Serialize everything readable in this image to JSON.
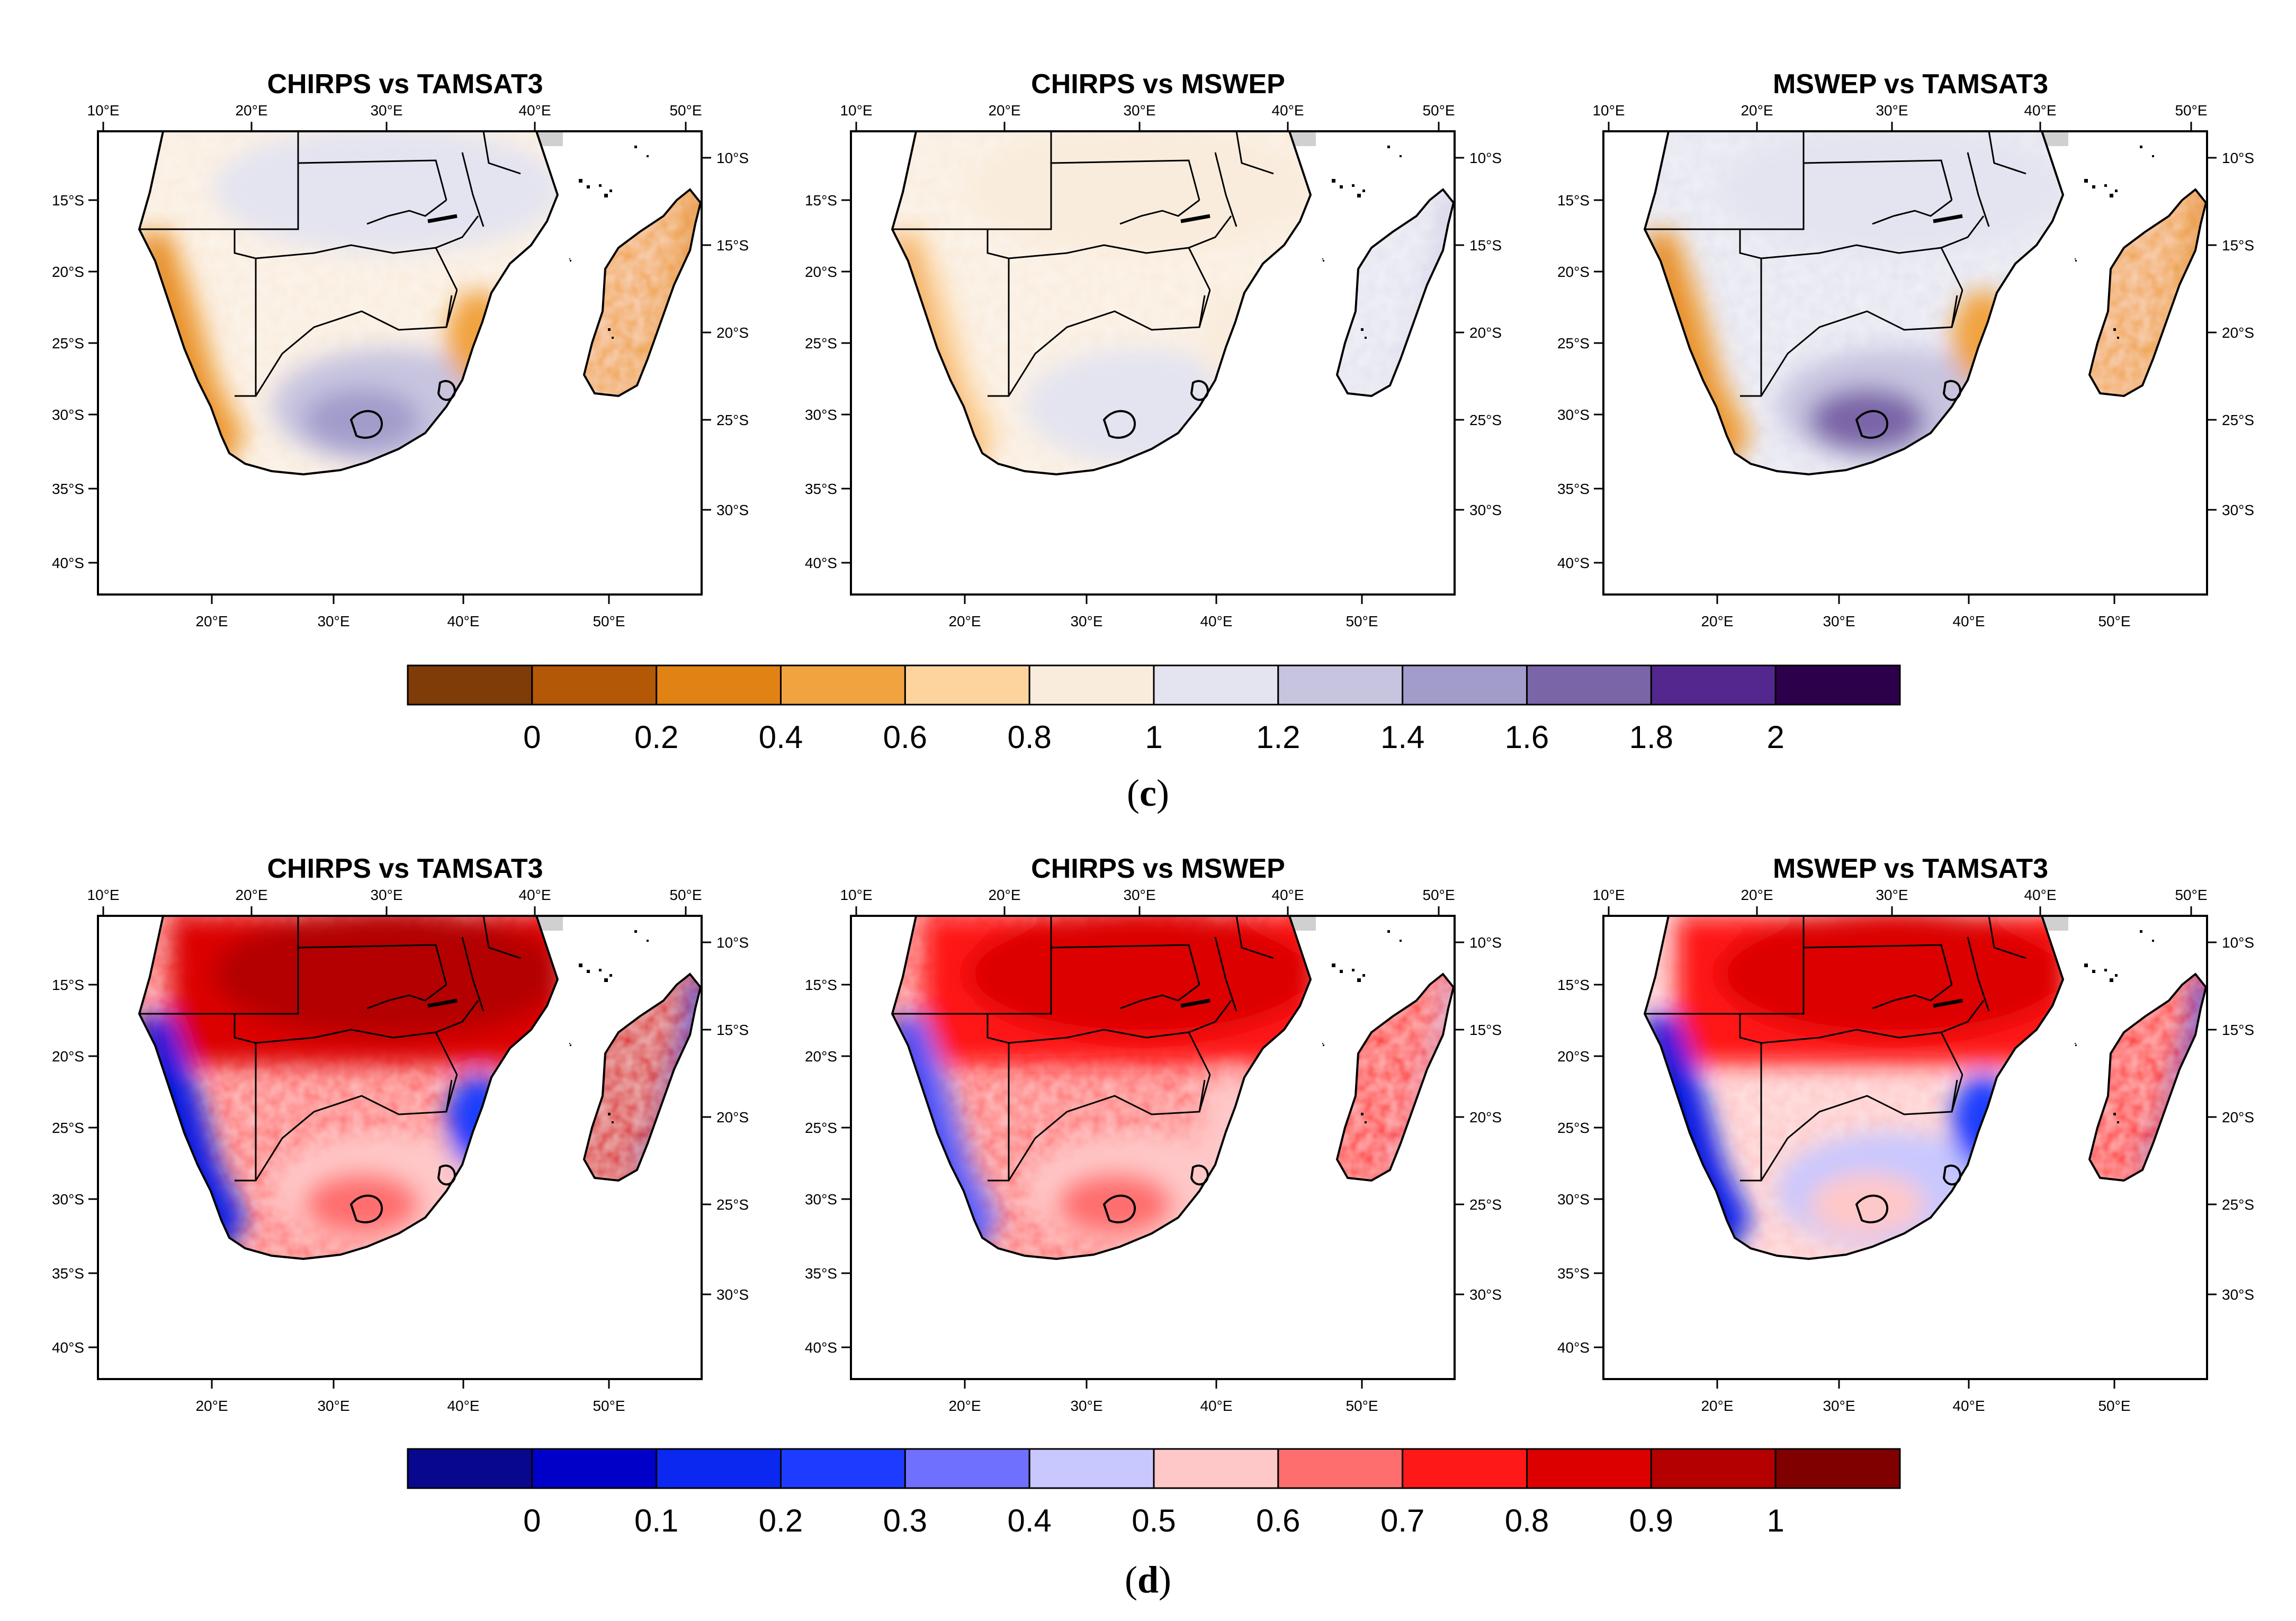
{
  "chart_data": [
    {
      "type": "heatmap",
      "panel_row": "c",
      "caption": {
        "open": "(",
        "letter": "c",
        "close": ")"
      },
      "titles": [
        "CHIRPS vs TAMSAT3",
        "CHIRPS vs MSWEP",
        "MSWEP vs TAMSAT3"
      ],
      "colorbar": {
        "ticks": [
          "0",
          "0.2",
          "0.4",
          "0.6",
          "0.8",
          "1",
          "1.2",
          "1.4",
          "1.6",
          "1.8",
          "2"
        ],
        "colors": [
          "#7f3b08",
          "#b35806",
          "#e08214",
          "#f1a340",
          "#fdd49e",
          "#f9ecdc",
          "#e4e4f0",
          "#c7c4e0",
          "#a29ccb",
          "#7a65a8",
          "#54278f",
          "#2d004b"
        ]
      },
      "panels": [
        {
          "name": "CHIRPS vs TAMSAT3",
          "dominant_range": [
            0.8,
            1.2
          ],
          "west_coast": [
            0.2,
            0.6
          ],
          "south_africa_interior": [
            1.2,
            1.6
          ]
        },
        {
          "name": "CHIRPS vs MSWEP",
          "dominant_range": [
            0.8,
            1.2
          ],
          "west_coast": [
            0.4,
            0.8
          ],
          "south_africa_interior": [
            1.0,
            1.2
          ]
        },
        {
          "name": "MSWEP vs TAMSAT3",
          "dominant_range": [
            1.0,
            1.2
          ],
          "west_coast": [
            0.2,
            0.6
          ],
          "south_africa_interior": [
            1.2,
            1.8
          ]
        }
      ]
    },
    {
      "type": "heatmap",
      "panel_row": "d",
      "caption": {
        "open": "(",
        "letter": "d",
        "close": ")"
      },
      "titles": [
        "CHIRPS vs TAMSAT3",
        "CHIRPS vs MSWEP",
        "MSWEP vs TAMSAT3"
      ],
      "colorbar": {
        "ticks": [
          "0",
          "0.1",
          "0.2",
          "0.3",
          "0.4",
          "0.5",
          "0.6",
          "0.7",
          "0.8",
          "0.9",
          "1"
        ],
        "colors": [
          "#08088e",
          "#0000c8",
          "#0a28f0",
          "#1e3cff",
          "#7070ff",
          "#c8c8ff",
          "#ffc8c8",
          "#ff6e6e",
          "#ff1818",
          "#dc0000",
          "#b40000",
          "#800000"
        ]
      },
      "panels": [
        {
          "name": "CHIRPS vs TAMSAT3",
          "north": [
            0.8,
            0.9
          ],
          "interior": [
            0.5,
            0.7
          ],
          "west_coast": [
            0.0,
            0.3
          ]
        },
        {
          "name": "CHIRPS vs MSWEP",
          "north": [
            0.7,
            0.9
          ],
          "interior": [
            0.5,
            0.7
          ],
          "west_coast": [
            0.2,
            0.5
          ]
        },
        {
          "name": "MSWEP vs TAMSAT3",
          "north": [
            0.7,
            0.9
          ],
          "interior": [
            0.4,
            0.6
          ],
          "west_coast": [
            0.0,
            0.3
          ]
        }
      ]
    }
  ],
  "axes": {
    "top_lon_ticks": [
      "10°E",
      "20°E",
      "30°E",
      "40°E",
      "50°E"
    ],
    "bottom_lon_ticks": [
      "20°E",
      "30°E",
      "40°E",
      "50°E"
    ],
    "left_lat_ticks": [
      "15°S",
      "20°S",
      "25°S",
      "30°S",
      "35°S",
      "40°S"
    ],
    "right_lat_ticks": [
      "10°S",
      "15°S",
      "20°S",
      "25°S",
      "30°S"
    ]
  },
  "colors": {
    "frame": "#000000",
    "missing": "#d0d0d0",
    "background": "#ffffff"
  }
}
